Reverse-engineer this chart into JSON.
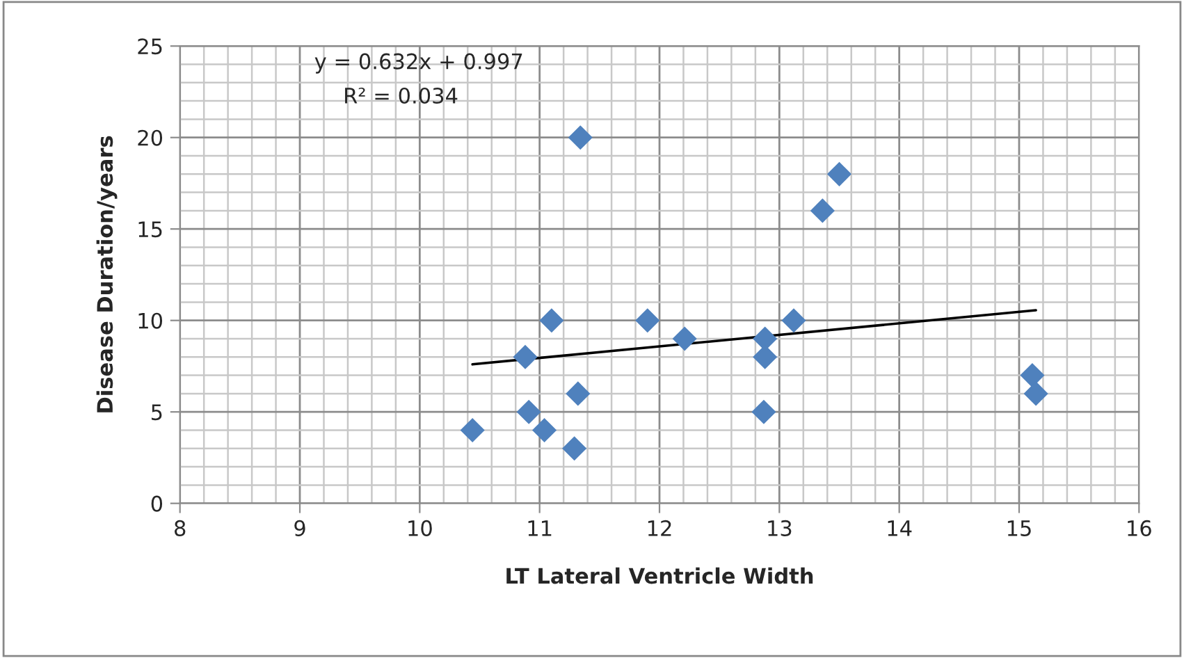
{
  "chart_data": {
    "type": "scatter",
    "xlabel": "LT Lateral Ventricle Width",
    "ylabel": "Disease Duration/years",
    "xlim": [
      8,
      16
    ],
    "xticks": [
      8,
      9,
      10,
      11,
      12,
      13,
      14,
      15,
      16
    ],
    "ylim": [
      0,
      25
    ],
    "yticks": [
      0,
      5,
      10,
      15,
      20,
      25
    ],
    "grid": true,
    "annotations": [
      "y = 0.632x + 0.997",
      "R² = 0.034"
    ],
    "series": [
      {
        "marker": "diamond",
        "color": "#4f81bd",
        "x": [
          10.44,
          10.88,
          10.91,
          11.04,
          11.1,
          11.29,
          11.32,
          11.34,
          11.9,
          12.21,
          12.88,
          12.88,
          12.87,
          13.12,
          13.36,
          13.5,
          15.11,
          15.14
        ],
        "values": [
          4,
          8,
          5,
          4,
          10,
          3,
          6,
          20,
          10,
          9,
          9,
          8,
          5,
          10,
          16,
          18,
          7,
          6
        ]
      },
      {
        "type": "line",
        "color": "#000000",
        "x": [
          10.44,
          15.14
        ],
        "values": [
          7.6,
          10.56
        ]
      }
    ]
  }
}
